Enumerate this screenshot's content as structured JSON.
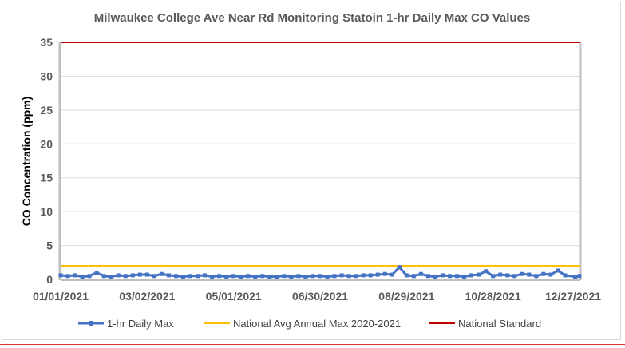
{
  "chart_data": {
    "type": "line",
    "title": "Milwaukee College Ave Near Rd Monitoring Statoin 1-hr Daily Max CO Values",
    "xlabel": "",
    "ylabel": "CO Concentration (ppm)",
    "ylim": [
      0,
      35
    ],
    "yticks": [
      "0",
      "5",
      "10",
      "15",
      "20",
      "25",
      "30",
      "35"
    ],
    "xlim": [
      "2021-01-01",
      "2021-12-27"
    ],
    "xticks": [
      "01/01/2021",
      "03/02/2021",
      "05/01/2021",
      "06/30/2021",
      "08/29/2021",
      "10/28/2021",
      "12/27/2021"
    ],
    "grid": true,
    "legend_placement": "bottom",
    "series": [
      {
        "name": "1-hr Daily Max",
        "color": "#4472c4",
        "marker": "square",
        "x": [
          "2021-01-01",
          "2021-01-06",
          "2021-01-11",
          "2021-01-16",
          "2021-01-21",
          "2021-01-26",
          "2021-01-31",
          "2021-02-05",
          "2021-02-10",
          "2021-02-15",
          "2021-02-20",
          "2021-02-25",
          "2021-03-02",
          "2021-03-07",
          "2021-03-12",
          "2021-03-17",
          "2021-03-22",
          "2021-03-27",
          "2021-04-01",
          "2021-04-06",
          "2021-04-11",
          "2021-04-16",
          "2021-04-21",
          "2021-04-26",
          "2021-05-01",
          "2021-05-06",
          "2021-05-11",
          "2021-05-16",
          "2021-05-21",
          "2021-05-26",
          "2021-05-31",
          "2021-06-05",
          "2021-06-10",
          "2021-06-15",
          "2021-06-20",
          "2021-06-25",
          "2021-06-30",
          "2021-07-05",
          "2021-07-10",
          "2021-07-15",
          "2021-07-20",
          "2021-07-25",
          "2021-07-30",
          "2021-08-04",
          "2021-08-09",
          "2021-08-14",
          "2021-08-19",
          "2021-08-24",
          "2021-08-29",
          "2021-09-03",
          "2021-09-08",
          "2021-09-13",
          "2021-09-18",
          "2021-09-23",
          "2021-09-28",
          "2021-10-03",
          "2021-10-08",
          "2021-10-13",
          "2021-10-18",
          "2021-10-23",
          "2021-10-28",
          "2021-11-02",
          "2021-11-07",
          "2021-11-12",
          "2021-11-17",
          "2021-11-22",
          "2021-11-27",
          "2021-12-02",
          "2021-12-07",
          "2021-12-12",
          "2021-12-17",
          "2021-12-24",
          "2021-12-27"
        ],
        "values": [
          0.6,
          0.5,
          0.6,
          0.4,
          0.5,
          1.0,
          0.5,
          0.4,
          0.6,
          0.5,
          0.6,
          0.7,
          0.7,
          0.5,
          0.8,
          0.6,
          0.5,
          0.4,
          0.5,
          0.5,
          0.6,
          0.4,
          0.5,
          0.4,
          0.5,
          0.4,
          0.5,
          0.4,
          0.5,
          0.4,
          0.4,
          0.5,
          0.4,
          0.5,
          0.4,
          0.5,
          0.5,
          0.4,
          0.5,
          0.6,
          0.5,
          0.5,
          0.6,
          0.6,
          0.7,
          0.8,
          0.7,
          1.8,
          0.6,
          0.5,
          0.8,
          0.5,
          0.4,
          0.6,
          0.5,
          0.5,
          0.4,
          0.6,
          0.7,
          1.2,
          0.5,
          0.7,
          0.6,
          0.5,
          0.8,
          0.7,
          0.5,
          0.8,
          0.7,
          1.3,
          0.6,
          0.4,
          0.5
        ]
      },
      {
        "name": "National Avg Annual Max 2020-2021",
        "color": "#ffc000",
        "value": 2.0
      },
      {
        "name": "National Standard",
        "color": "#c00000",
        "value": 35
      }
    ]
  }
}
